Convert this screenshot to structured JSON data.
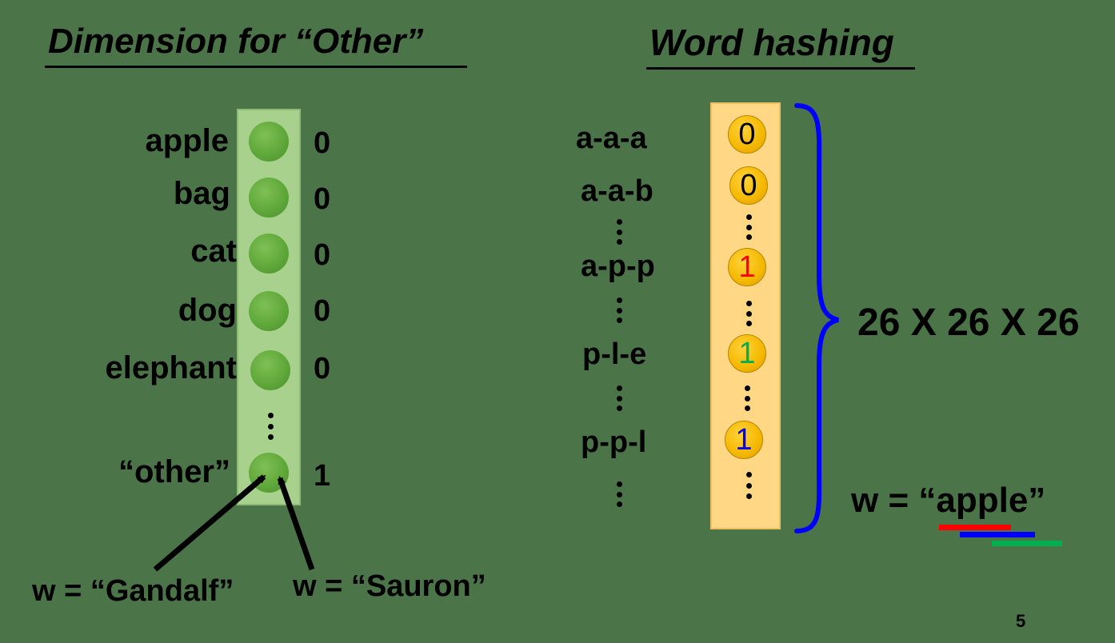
{
  "left": {
    "title": "Dimension for “Other”",
    "rows": [
      {
        "word": "apple",
        "value": "0"
      },
      {
        "word": "bag",
        "value": "0"
      },
      {
        "word": "cat",
        "value": "0"
      },
      {
        "word": "dog",
        "value": "0"
      },
      {
        "word": "elephant",
        "value": "0"
      }
    ],
    "other": {
      "word": "“other”",
      "value": "1"
    },
    "label_gandalf": "w = “Gandalf”",
    "label_sauron": "w = “Sauron”",
    "colors": {
      "column": "#a9d18e",
      "node": "#5fa83a"
    }
  },
  "right": {
    "title": "Word hashing",
    "trigrams": [
      "a-a-a",
      "a-a-b",
      "a-p-p",
      "p-l-e",
      "p-p-l"
    ],
    "nodes": [
      {
        "value": "0",
        "color": "#000000"
      },
      {
        "value": "0",
        "color": "#000000"
      },
      {
        "value": "1",
        "color": "#ff0000"
      },
      {
        "value": "1",
        "color": "#00b050"
      },
      {
        "value": "1",
        "color": "#0000ff"
      }
    ],
    "dimension": "26 X 26 X 26",
    "equation": "w =  “apple”",
    "underline_colors": [
      "#ff0000",
      "#0000ff",
      "#00b050"
    ],
    "colors": {
      "column": "#ffd785",
      "node": "#f5b800",
      "brace": "#0000ff"
    }
  },
  "page_number": "5"
}
